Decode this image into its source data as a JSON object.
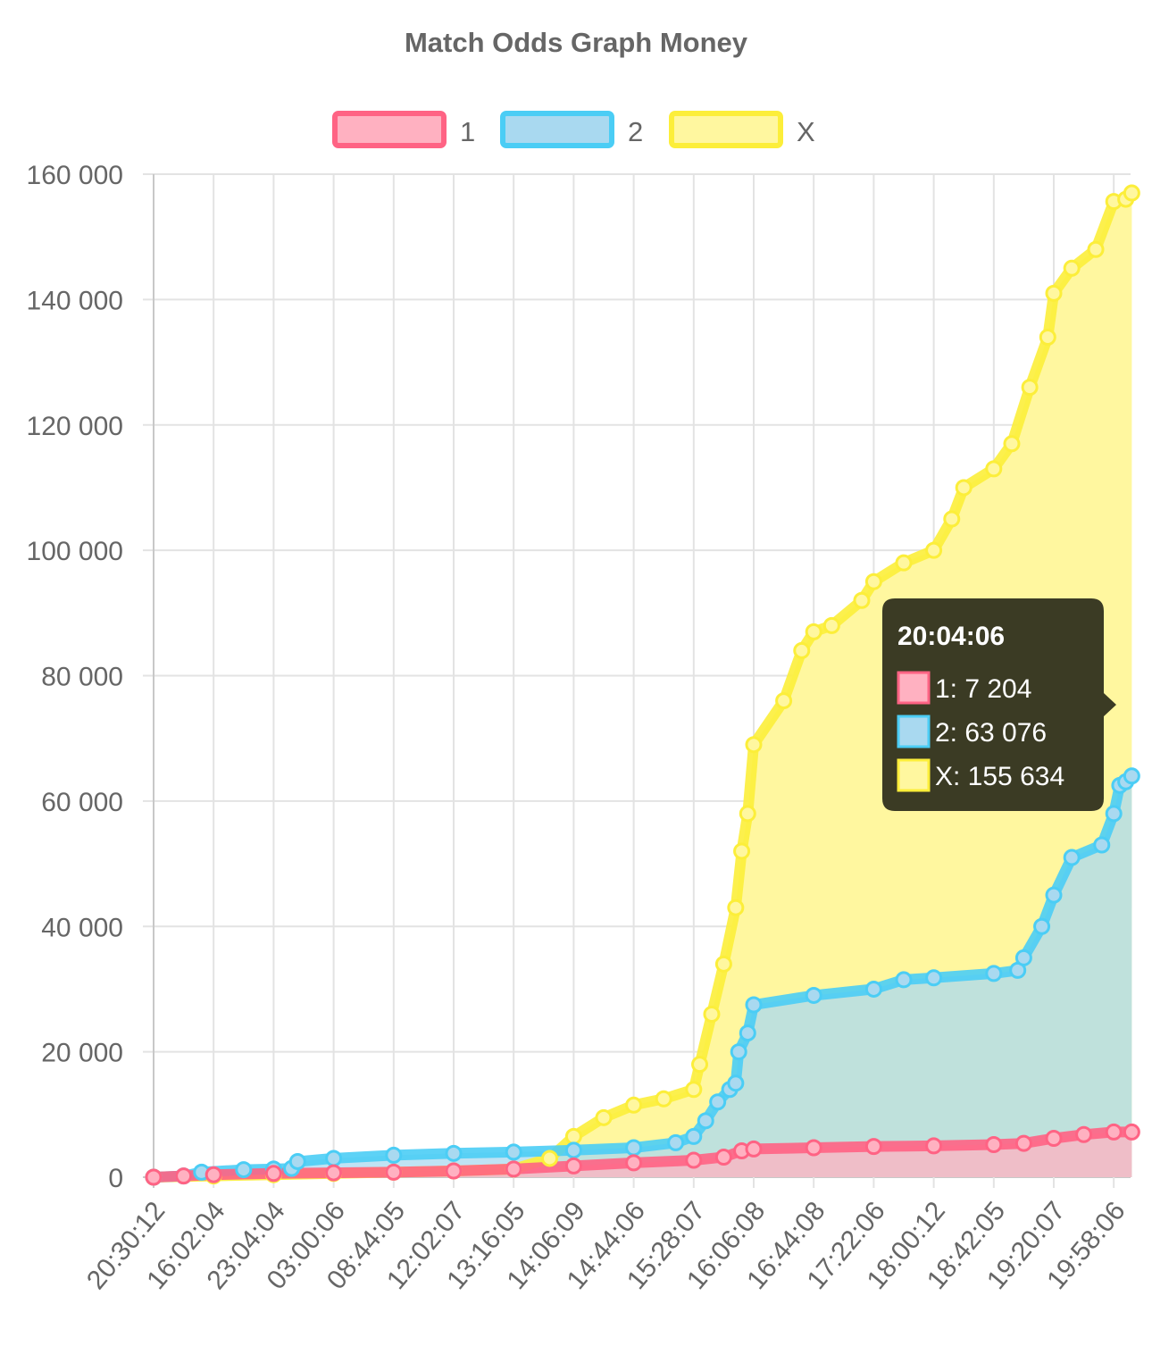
{
  "chart_data": {
    "type": "area",
    "title": "Match Odds Graph Money",
    "xlabel": "",
    "ylabel": "",
    "ylim": [
      0,
      160000
    ],
    "y_ticks": [
      0,
      20000,
      40000,
      60000,
      80000,
      100000,
      120000,
      140000,
      160000
    ],
    "y_tick_labels": [
      "0",
      "20 000",
      "40 000",
      "60 000",
      "80 000",
      "100 000",
      "120 000",
      "140 000",
      "160 000"
    ],
    "x_tick_labels": [
      "20:30:12",
      "16:02:04",
      "23:04:04",
      "03:00:06",
      "08:44:05",
      "12:02:07",
      "13:16:05",
      "14:06:09",
      "14:44:06",
      "15:28:07",
      "16:06:08",
      "16:44:08",
      "17:22:06",
      "18:00:12",
      "18:42:05",
      "19:20:07",
      "19:58:06"
    ],
    "x_index_range": [
      0,
      16.3
    ],
    "grid": true,
    "legend_position": "top",
    "series": [
      {
        "name": "1",
        "border_color": "#ff6384",
        "fill_color": "#ffb1c1",
        "points": [
          [
            0,
            0
          ],
          [
            0.5,
            200
          ],
          [
            1,
            400
          ],
          [
            2,
            600
          ],
          [
            3,
            700
          ],
          [
            4,
            800
          ],
          [
            5,
            1000
          ],
          [
            6,
            1300
          ],
          [
            7,
            1800
          ],
          [
            8,
            2300
          ],
          [
            9,
            2700
          ],
          [
            9.5,
            3200
          ],
          [
            9.8,
            4200
          ],
          [
            10,
            4500
          ],
          [
            11,
            4700
          ],
          [
            12,
            4900
          ],
          [
            13,
            5000
          ],
          [
            14,
            5200
          ],
          [
            14.5,
            5400
          ],
          [
            15,
            6200
          ],
          [
            15.5,
            6800
          ],
          [
            16,
            7204
          ],
          [
            16.3,
            7204
          ]
        ]
      },
      {
        "name": "2",
        "border_color": "#4bcdf5",
        "fill_color": "#a9d9f0",
        "points": [
          [
            0,
            0
          ],
          [
            0.5,
            200
          ],
          [
            0.8,
            800
          ],
          [
            1.5,
            1200
          ],
          [
            2,
            1300
          ],
          [
            2.3,
            1400
          ],
          [
            2.4,
            2500
          ],
          [
            3,
            3000
          ],
          [
            4,
            3500
          ],
          [
            5,
            3800
          ],
          [
            6,
            4000
          ],
          [
            7,
            4300
          ],
          [
            8,
            4700
          ],
          [
            8.7,
            5500
          ],
          [
            9,
            6500
          ],
          [
            9.2,
            9000
          ],
          [
            9.4,
            12000
          ],
          [
            9.6,
            14000
          ],
          [
            9.7,
            15000
          ],
          [
            9.75,
            20000
          ],
          [
            9.9,
            23000
          ],
          [
            10,
            27500
          ],
          [
            11,
            29000
          ],
          [
            12,
            30000
          ],
          [
            12.5,
            31500
          ],
          [
            13,
            31800
          ],
          [
            14,
            32500
          ],
          [
            14.4,
            33000
          ],
          [
            14.5,
            35000
          ],
          [
            14.8,
            40000
          ],
          [
            15,
            45000
          ],
          [
            15.3,
            51000
          ],
          [
            15.8,
            53000
          ],
          [
            16,
            58000
          ],
          [
            16.1,
            62500
          ],
          [
            16.2,
            63076
          ],
          [
            16.3,
            64000
          ]
        ]
      },
      {
        "name": "X",
        "border_color": "#fcee3a",
        "fill_color": "#fff79f",
        "points": [
          [
            0,
            0
          ],
          [
            1,
            200
          ],
          [
            2,
            400
          ],
          [
            3,
            600
          ],
          [
            4,
            800
          ],
          [
            5,
            1000
          ],
          [
            6,
            1300
          ],
          [
            6.6,
            3000
          ],
          [
            7,
            6500
          ],
          [
            7.5,
            9500
          ],
          [
            8,
            11500
          ],
          [
            8.5,
            12500
          ],
          [
            9,
            14000
          ],
          [
            9.1,
            18000
          ],
          [
            9.3,
            26000
          ],
          [
            9.5,
            34000
          ],
          [
            9.7,
            43000
          ],
          [
            9.8,
            52000
          ],
          [
            9.9,
            58000
          ],
          [
            10,
            69000
          ],
          [
            10.5,
            76000
          ],
          [
            10.8,
            84000
          ],
          [
            11,
            87000
          ],
          [
            11.3,
            88000
          ],
          [
            11.8,
            92000
          ],
          [
            12,
            95000
          ],
          [
            12.5,
            98000
          ],
          [
            13,
            100000
          ],
          [
            13.3,
            105000
          ],
          [
            13.5,
            110000
          ],
          [
            14,
            113000
          ],
          [
            14.3,
            117000
          ],
          [
            14.6,
            126000
          ],
          [
            14.9,
            134000
          ],
          [
            15,
            141000
          ],
          [
            15.3,
            145000
          ],
          [
            15.7,
            148000
          ],
          [
            16,
            155634
          ],
          [
            16.2,
            156000
          ],
          [
            16.3,
            157000
          ]
        ]
      }
    ],
    "tooltip": {
      "title": "20:04:06",
      "lines": [
        {
          "label": "1: 7 204",
          "border_color": "#ff6384",
          "fill_color": "#ffb1c1"
        },
        {
          "label": "2: 63 076",
          "border_color": "#4bcdf5",
          "fill_color": "#a9d9f0"
        },
        {
          "label": "X: 155 634",
          "border_color": "#fcee3a",
          "fill_color": "#fff79f"
        }
      ]
    }
  }
}
